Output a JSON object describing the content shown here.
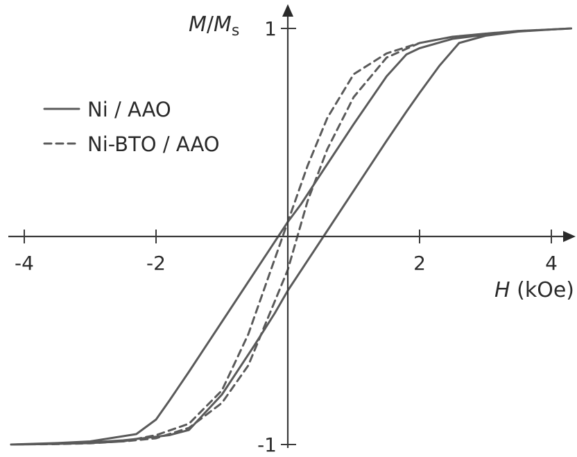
{
  "chart_data": {
    "type": "line",
    "title": "",
    "xlabel_var": "H",
    "xlabel_unit": " (kOe)",
    "ylabel_var": "M",
    "ylabel_slash": "/",
    "ylabel_sub_var": "M",
    "ylabel_sub": "s",
    "xlim": [
      -4.2,
      4.3
    ],
    "ylim": [
      -1,
      1
    ],
    "x_ticks": [
      -4,
      -2,
      2,
      4
    ],
    "x_tick_labels": [
      "-4",
      "-2",
      "2",
      "4"
    ],
    "y_ticks": [
      1,
      -1
    ],
    "y_tick_labels": [
      "1",
      "-1"
    ],
    "grid": false,
    "legend_position": "top-left",
    "series": [
      {
        "name": "Ni / AAO",
        "style": "solid",
        "color": "#5a5a5a",
        "x": [
          -4.2,
          -3.5,
          -3.0,
          -2.5,
          -2.2,
          -1.8,
          -1.5,
          -1.0,
          -0.5,
          -0.2,
          0.0,
          0.5,
          1.0,
          1.5,
          1.8,
          2.0,
          2.3,
          2.6,
          3.0,
          3.5,
          4.0,
          4.3,
          4.0,
          3.5,
          3.0,
          2.5,
          2.0,
          1.8,
          1.5,
          1.0,
          0.5,
          0.2,
          0.0,
          -0.5,
          -1.0,
          -1.5,
          -1.8,
          -2.0,
          -2.3,
          -2.6,
          -3.0,
          -3.5,
          -4.2
        ],
        "y": [
          -1.0,
          -0.996,
          -0.99,
          -0.98,
          -0.97,
          -0.955,
          -0.93,
          -0.76,
          -0.52,
          -0.37,
          -0.26,
          -0.02,
          0.22,
          0.46,
          0.6,
          0.69,
          0.82,
          0.93,
          0.965,
          0.985,
          0.995,
          1.0,
          0.995,
          0.985,
          0.97,
          0.95,
          0.905,
          0.875,
          0.77,
          0.54,
          0.3,
          0.155,
          0.07,
          -0.17,
          -0.41,
          -0.65,
          -0.79,
          -0.88,
          -0.95,
          -0.965,
          -0.985,
          -0.993,
          -1.0
        ]
      },
      {
        "name": "Ni-BTO / AAO",
        "style": "dashed",
        "color": "#5a5a5a",
        "x": [
          -4.2,
          -3.5,
          -3.0,
          -2.5,
          -2.0,
          -1.5,
          -1.0,
          -0.6,
          -0.3,
          0.0,
          0.3,
          0.6,
          1.0,
          1.5,
          2.0,
          2.5,
          3.0,
          3.5,
          4.0,
          4.3,
          4.0,
          3.5,
          3.0,
          2.5,
          2.0,
          1.5,
          1.0,
          0.6,
          0.3,
          0.0,
          -0.3,
          -0.6,
          -1.0,
          -1.5,
          -2.0,
          -2.5,
          -3.0,
          -3.5,
          -4.2
        ],
        "y": [
          -1.0,
          -0.997,
          -0.993,
          -0.985,
          -0.97,
          -0.92,
          -0.8,
          -0.62,
          -0.39,
          -0.16,
          0.17,
          0.42,
          0.67,
          0.86,
          0.93,
          0.96,
          0.975,
          0.988,
          0.995,
          1.0,
          0.995,
          0.988,
          0.975,
          0.96,
          0.93,
          0.88,
          0.78,
          0.57,
          0.34,
          0.07,
          -0.2,
          -0.47,
          -0.74,
          -0.9,
          -0.955,
          -0.985,
          -0.994,
          -0.998,
          -1.0
        ]
      }
    ]
  }
}
